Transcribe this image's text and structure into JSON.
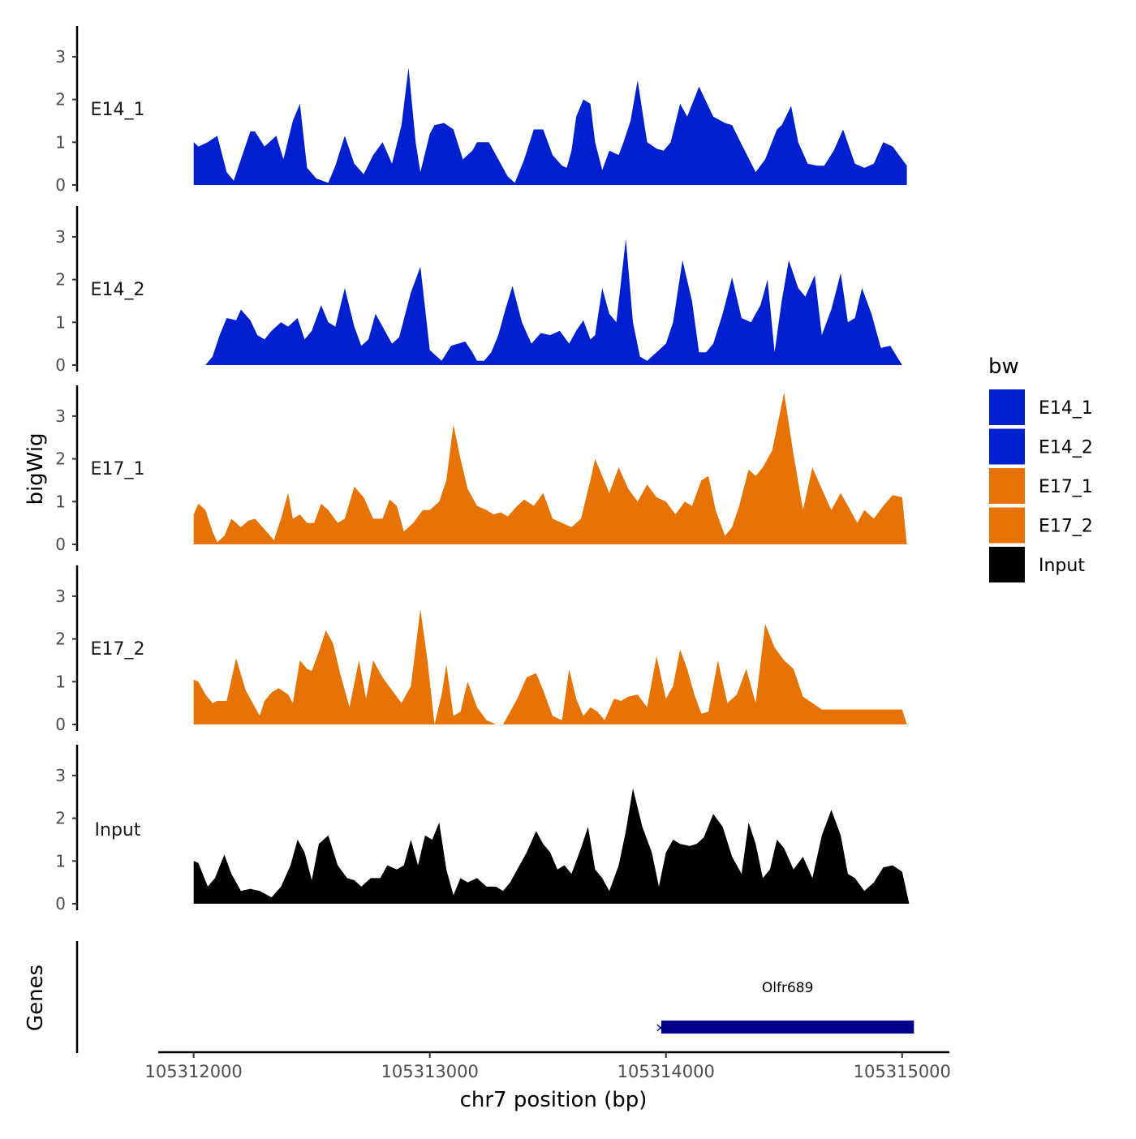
{
  "chart_data": {
    "type": "area",
    "title": "",
    "xlabel": "chr7 position (bp)",
    "ylabel": "bigWig",
    "genes_label": "Genes",
    "xlim": [
      105311850,
      105315200
    ],
    "ylim": [
      0,
      3.75
    ],
    "yticks": [
      "0",
      "1",
      "2",
      "3"
    ],
    "xticks": [
      {
        "value": 105312000,
        "label": "105312000"
      },
      {
        "value": 105313000,
        "label": "105313000"
      },
      {
        "value": 105314000,
        "label": "105314000"
      },
      {
        "value": 105315000,
        "label": "105315000"
      }
    ],
    "legend": {
      "title": "bw",
      "position": "right",
      "entries": [
        {
          "label": "E14_1",
          "color": "#0020d0"
        },
        {
          "label": "E14_2",
          "color": "#0020d0"
        },
        {
          "label": "E17_1",
          "color": "#e87305"
        },
        {
          "label": "E17_2",
          "color": "#e87305"
        },
        {
          "label": "Input",
          "color": "#000000"
        }
      ]
    },
    "series": [
      {
        "name": "E14_1",
        "color": "#0020d0",
        "x": [
          105312000,
          105312020,
          105312060,
          105312100,
          105312140,
          105312170,
          105312200,
          105312240,
          105312260,
          105312300,
          105312350,
          105312380,
          105312420,
          105312450,
          105312480,
          105312520,
          105312570,
          105312600,
          105312640,
          105312680,
          105312720,
          105312760,
          105312800,
          105312840,
          105312880,
          105312910,
          105312940,
          105312960,
          105313000,
          105313020,
          105313060,
          105313100,
          105313140,
          105313180,
          105313200,
          105313250,
          105313290,
          105313330,
          105313360,
          105313400,
          105313440,
          105313480,
          105313520,
          105313560,
          105313580,
          105313600,
          105313620,
          105313650,
          105313680,
          105313700,
          105313730,
          105313760,
          105313800,
          105313820,
          105313850,
          105313880,
          105313920,
          105313960,
          105313990,
          105314020,
          105314060,
          105314090,
          105314140,
          105314200,
          105314250,
          105314280,
          105314320,
          105314380,
          105314420,
          105314470,
          105314490,
          105314530,
          105314560,
          105314600,
          105314640,
          105314670,
          105314710,
          105314750,
          105314800,
          105314840,
          105314880,
          105314920,
          105314960,
          105315000,
          105315020
        ],
        "values": [
          1.0,
          0.9,
          1.0,
          1.15,
          0.3,
          0.1,
          0.6,
          1.25,
          1.25,
          0.9,
          1.15,
          0.6,
          1.5,
          1.9,
          0.4,
          0.15,
          0.05,
          0.45,
          1.15,
          0.5,
          0.25,
          0.7,
          1.0,
          0.5,
          1.4,
          2.75,
          1.0,
          0.3,
          1.2,
          1.4,
          1.45,
          1.3,
          0.6,
          0.8,
          1.0,
          1.0,
          0.6,
          0.2,
          0.05,
          0.6,
          1.3,
          1.3,
          0.7,
          0.45,
          0.4,
          0.8,
          1.6,
          2.0,
          1.9,
          1.0,
          0.35,
          0.8,
          0.7,
          1.0,
          1.5,
          2.45,
          1.0,
          0.85,
          0.8,
          1.0,
          1.9,
          1.6,
          2.3,
          1.6,
          1.45,
          1.4,
          0.95,
          0.3,
          0.6,
          1.3,
          1.4,
          1.85,
          1.0,
          0.5,
          0.45,
          0.45,
          0.8,
          1.3,
          0.5,
          0.4,
          0.5,
          1.0,
          0.9,
          0.6,
          0.45
        ]
      },
      {
        "name": "E14_2",
        "color": "#0020d0",
        "x": [
          105312050,
          105312080,
          105312110,
          105312140,
          105312180,
          105312200,
          105312240,
          105312270,
          105312300,
          105312330,
          105312370,
          105312400,
          105312440,
          105312470,
          105312500,
          105312540,
          105312570,
          105312600,
          105312640,
          105312680,
          105312710,
          105312740,
          105312770,
          105312800,
          105312840,
          105312870,
          105312920,
          105312960,
          105313000,
          105313050,
          105313090,
          105313120,
          105313150,
          105313180,
          105313200,
          105313230,
          105313260,
          105313290,
          105313320,
          105313350,
          105313390,
          105313430,
          105313470,
          105313510,
          105313550,
          105313590,
          105313620,
          105313650,
          105313680,
          105313700,
          105313730,
          105313760,
          105313790,
          105313830,
          105313860,
          105313890,
          105313920,
          105313960,
          105314000,
          105314030,
          105314070,
          105314110,
          105314140,
          105314170,
          105314200,
          105314240,
          105314280,
          105314320,
          105314360,
          105314400,
          105314430,
          105314460,
          105314490,
          105314520,
          105314560,
          105314590,
          105314630,
          105314660,
          105314700,
          105314740,
          105314770,
          105314800,
          105314830,
          105314870,
          105314910,
          105314950,
          105315000
        ],
        "values": [
          0.0,
          0.2,
          0.7,
          1.1,
          1.05,
          1.3,
          1.05,
          0.7,
          0.6,
          0.8,
          1.0,
          0.9,
          1.1,
          0.6,
          0.8,
          1.4,
          1.0,
          0.9,
          1.8,
          0.9,
          0.45,
          0.6,
          1.2,
          0.9,
          0.5,
          0.65,
          1.7,
          2.3,
          0.35,
          0.1,
          0.45,
          0.5,
          0.55,
          0.3,
          0.1,
          0.1,
          0.3,
          0.7,
          1.3,
          1.85,
          1.0,
          0.5,
          0.75,
          0.7,
          0.8,
          0.5,
          0.8,
          1.05,
          0.6,
          0.7,
          1.8,
          1.2,
          1.0,
          2.95,
          1.0,
          0.2,
          0.1,
          0.3,
          0.5,
          1.0,
          2.45,
          1.5,
          0.3,
          0.3,
          0.5,
          1.2,
          2.05,
          1.1,
          1.0,
          1.4,
          2.0,
          0.3,
          1.5,
          2.45,
          1.8,
          1.6,
          2.1,
          0.7,
          1.3,
          2.15,
          1.0,
          1.1,
          1.8,
          1.2,
          0.4,
          0.45,
          0.0
        ]
      },
      {
        "name": "E17_1",
        "color": "#e87305",
        "x": [
          105312000,
          105312020,
          105312050,
          105312080,
          105312100,
          105312130,
          105312160,
          105312200,
          105312230,
          105312260,
          105312300,
          105312340,
          105312370,
          105312400,
          105312420,
          105312450,
          105312480,
          105312510,
          105312540,
          105312570,
          105312610,
          105312640,
          105312680,
          105312720,
          105312760,
          105312800,
          105312830,
          105312860,
          105312890,
          105312930,
          105312970,
          105313000,
          105313040,
          105313070,
          105313100,
          105313130,
          105313160,
          105313200,
          105313240,
          105313270,
          105313300,
          105313330,
          105313370,
          105313400,
          105313440,
          105313480,
          105313520,
          105313560,
          105313600,
          105313640,
          105313680,
          105313700,
          105313730,
          105313760,
          105313800,
          105313840,
          105313880,
          105313920,
          105313960,
          105314000,
          105314040,
          105314080,
          105314110,
          105314150,
          105314180,
          105314210,
          105314250,
          105314280,
          105314310,
          105314350,
          105314380,
          105314410,
          105314450,
          105314500,
          105314540,
          105314580,
          105314620,
          105314660,
          105314700,
          105314740,
          105314780,
          105314810,
          105314840,
          105314880,
          105314920,
          105314960,
          105315000,
          105315020
        ],
        "values": [
          0.7,
          0.95,
          0.8,
          0.3,
          0.05,
          0.2,
          0.6,
          0.4,
          0.55,
          0.6,
          0.35,
          0.1,
          0.6,
          1.2,
          0.6,
          0.7,
          0.5,
          0.5,
          0.95,
          0.8,
          0.5,
          0.6,
          1.35,
          1.1,
          0.6,
          0.6,
          1.05,
          0.9,
          0.3,
          0.5,
          0.8,
          0.8,
          1.0,
          1.5,
          2.8,
          2.0,
          1.3,
          0.9,
          0.8,
          0.7,
          0.75,
          0.65,
          0.9,
          1.05,
          0.9,
          1.2,
          0.6,
          0.5,
          0.4,
          0.6,
          1.5,
          2.0,
          1.6,
          1.2,
          1.8,
          1.3,
          1.0,
          1.4,
          1.1,
          1.0,
          0.7,
          1.0,
          0.9,
          1.5,
          1.6,
          0.8,
          0.2,
          0.4,
          0.9,
          1.75,
          1.6,
          1.8,
          2.2,
          3.55,
          2.1,
          0.8,
          1.8,
          1.3,
          0.8,
          1.2,
          0.8,
          0.5,
          0.8,
          0.6,
          0.9,
          1.15,
          1.1,
          0.0
        ]
      },
      {
        "name": "E17_2",
        "color": "#e87305",
        "x": [
          105312000,
          105312020,
          105312050,
          105312080,
          105312100,
          105312140,
          105312180,
          105312220,
          105312250,
          105312280,
          105312300,
          105312330,
          105312360,
          105312400,
          105312420,
          105312450,
          105312480,
          105312500,
          105312530,
          105312560,
          105312590,
          105312620,
          105312660,
          105312700,
          105312730,
          105312760,
          105312800,
          105312840,
          105312880,
          105312920,
          105312960,
          105312990,
          105313020,
          105313050,
          105313070,
          105313100,
          105313130,
          105313160,
          105313200,
          105313240,
          105313280,
          105313310,
          105313340,
          105313370,
          105313410,
          105313450,
          105313480,
          105313520,
          105313560,
          105313590,
          105313620,
          105313650,
          105313680,
          105313710,
          105313740,
          105313780,
          105313810,
          105313840,
          105313880,
          105313920,
          105313960,
          105314000,
          105314030,
          105314060,
          105314090,
          105314120,
          105314150,
          105314180,
          105314220,
          105314260,
          105314300,
          105314340,
          105314380,
          105314420,
          105314460,
          105314500,
          105314540,
          105314580,
          105314620,
          105314660,
          105314700,
          105314740,
          105314780,
          105314820,
          105314860,
          105314900,
          105314940,
          105314980,
          105315000,
          105315020
        ],
        "values": [
          1.05,
          1.0,
          0.7,
          0.5,
          0.55,
          0.55,
          1.55,
          0.8,
          0.5,
          0.2,
          0.55,
          0.75,
          0.85,
          0.7,
          0.5,
          1.5,
          1.3,
          1.25,
          1.7,
          2.2,
          1.9,
          1.2,
          0.4,
          1.5,
          0.6,
          1.5,
          1.1,
          0.8,
          0.5,
          0.9,
          2.7,
          1.5,
          0.0,
          0.7,
          1.4,
          0.2,
          0.3,
          1.0,
          0.4,
          0.1,
          0.0,
          0.0,
          0.3,
          0.6,
          1.1,
          1.2,
          0.8,
          0.2,
          0.1,
          1.3,
          0.6,
          0.2,
          0.4,
          0.3,
          0.1,
          0.6,
          0.55,
          0.65,
          0.7,
          0.4,
          1.6,
          0.6,
          0.9,
          1.75,
          1.3,
          0.7,
          0.25,
          0.3,
          1.5,
          0.5,
          0.7,
          1.3,
          0.5,
          2.35,
          1.8,
          1.5,
          1.3,
          0.65,
          0.5,
          0.35,
          0.35,
          0.35,
          0.35,
          0.35,
          0.35,
          0.35,
          0.35,
          0.35,
          0.35,
          0.0
        ]
      },
      {
        "name": "Input",
        "color": "#000000",
        "x": [
          105312000,
          105312020,
          105312060,
          105312090,
          105312130,
          105312160,
          105312200,
          105312240,
          105312280,
          105312330,
          105312370,
          105312410,
          105312440,
          105312470,
          105312500,
          105312530,
          105312570,
          105312610,
          105312650,
          105312680,
          105312710,
          105312750,
          105312790,
          105312820,
          105312860,
          105312890,
          105312920,
          105312950,
          105312980,
          105313010,
          105313040,
          105313070,
          105313100,
          105313130,
          105313160,
          105313200,
          105313240,
          105313280,
          105313310,
          105313340,
          105313380,
          105313410,
          105313450,
          105313480,
          105313510,
          105313540,
          105313570,
          105313600,
          105313640,
          105313670,
          105313700,
          105313730,
          105313760,
          105313800,
          105313830,
          105313860,
          105313900,
          105313940,
          105313970,
          105314000,
          105314030,
          105314060,
          105314100,
          105314130,
          105314160,
          105314200,
          105314240,
          105314280,
          105314320,
          105314350,
          105314380,
          105314410,
          105314440,
          105314470,
          105314500,
          105314540,
          105314580,
          105314620,
          105314660,
          105314700,
          105314740,
          105314770,
          105314800,
          105314840,
          105314880,
          105314920,
          105314960,
          105315000,
          105315030
        ],
        "values": [
          1.0,
          0.95,
          0.4,
          0.6,
          1.15,
          0.7,
          0.3,
          0.35,
          0.3,
          0.15,
          0.4,
          0.9,
          1.5,
          1.2,
          0.55,
          1.4,
          1.6,
          0.9,
          0.6,
          0.55,
          0.4,
          0.6,
          0.6,
          0.9,
          0.8,
          0.9,
          1.5,
          0.9,
          1.6,
          1.5,
          1.9,
          0.8,
          0.2,
          0.6,
          0.5,
          0.6,
          0.4,
          0.4,
          0.3,
          0.5,
          0.9,
          1.2,
          1.7,
          1.4,
          1.2,
          0.8,
          0.9,
          0.7,
          1.3,
          1.8,
          0.8,
          0.6,
          0.3,
          0.9,
          1.7,
          2.7,
          1.8,
          1.2,
          0.4,
          1.2,
          1.5,
          1.4,
          1.35,
          1.4,
          1.55,
          2.1,
          1.8,
          1.1,
          0.7,
          1.9,
          1.4,
          0.6,
          0.8,
          1.5,
          1.3,
          0.8,
          1.1,
          0.6,
          1.6,
          2.2,
          1.6,
          0.7,
          0.6,
          0.3,
          0.5,
          0.85,
          0.9,
          0.75,
          0.0
        ]
      }
    ],
    "gene": {
      "name": "Olfr689",
      "start": 105313980,
      "end": 105315050,
      "strand": "-",
      "color": "#00008b"
    }
  }
}
